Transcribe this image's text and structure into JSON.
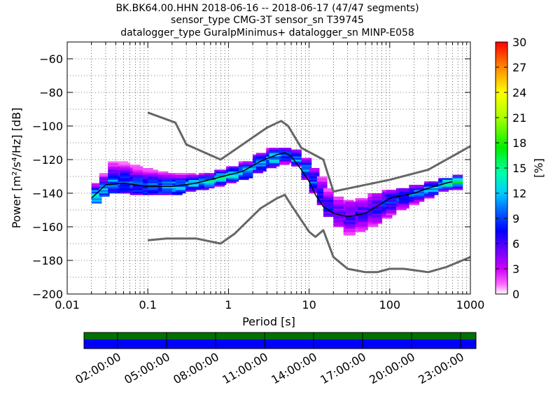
{
  "title_lines": [
    "BK.BK64.00.HHN   2018-06-16 -- 2018-06-17  (47/47 segments)",
    "sensor_type CMG-3T sensor_sn T39745",
    "datalogger_type GuralpMinimus+ datalogger_sn MINP-E058"
  ],
  "colorbar": {
    "label": "[%]",
    "min": 0,
    "max": 30,
    "ticks": [
      "0",
      "3",
      "6",
      "9",
      "12",
      "15",
      "18",
      "21",
      "24",
      "27",
      "30"
    ]
  },
  "coverage": {
    "time_labels": [
      "02:00:00",
      "05:00:00",
      "08:00:00",
      "11:00:00",
      "14:00:00",
      "17:00:00",
      "20:00:00",
      "23:00:00"
    ],
    "colors": {
      "upper": "#007000",
      "lower": "#0000ff"
    }
  },
  "chart_data": {
    "type": "heatmap",
    "xlabel": "Period [s]",
    "ylabel": "Power [m²/s⁴/Hz] [dB]",
    "x_scale": "log",
    "xlim": [
      0.01,
      1000
    ],
    "ylim": [
      -200,
      -50
    ],
    "xticks": [
      "0.01",
      "0.1",
      "1",
      "10",
      "100",
      "1000"
    ],
    "yticks": [
      "−200",
      "−180",
      "−160",
      "−140",
      "−120",
      "−100",
      "−80",
      "−60"
    ],
    "grid": true,
    "mode_curve": [
      [
        0.02,
        -143
      ],
      [
        0.03,
        -135
      ],
      [
        0.05,
        -134
      ],
      [
        0.1,
        -136
      ],
      [
        0.2,
        -136
      ],
      [
        0.4,
        -134
      ],
      [
        0.7,
        -131
      ],
      [
        1.5,
        -127
      ],
      [
        2.5,
        -121
      ],
      [
        4,
        -117
      ],
      [
        5,
        -116
      ],
      [
        6,
        -118
      ],
      [
        8,
        -126
      ],
      [
        10,
        -133
      ],
      [
        12,
        -141
      ],
      [
        15,
        -148
      ],
      [
        20,
        -152
      ],
      [
        30,
        -154
      ],
      [
        50,
        -152
      ],
      [
        100,
        -143
      ],
      [
        200,
        -140
      ],
      [
        300,
        -137
      ],
      [
        600,
        -133
      ]
    ],
    "noise_model_high": [
      [
        0.1,
        -92
      ],
      [
        0.22,
        -98
      ],
      [
        0.3,
        -111
      ],
      [
        0.8,
        -120
      ],
      [
        3,
        -101
      ],
      [
        4.5,
        -97
      ],
      [
        5.5,
        -100
      ],
      [
        8,
        -113
      ],
      [
        15,
        -120
      ],
      [
        20,
        -139
      ],
      [
        100,
        -132
      ],
      [
        300,
        -126
      ],
      [
        600,
        -118
      ],
      [
        1000,
        -112
      ]
    ],
    "noise_model_low": [
      [
        0.1,
        -168
      ],
      [
        0.17,
        -167
      ],
      [
        0.4,
        -167
      ],
      [
        0.8,
        -170
      ],
      [
        1.2,
        -164
      ],
      [
        2.5,
        -149
      ],
      [
        4,
        -143
      ],
      [
        5,
        -141
      ],
      [
        6,
        -147
      ],
      [
        10,
        -163
      ],
      [
        12,
        -166
      ],
      [
        15,
        -162
      ],
      [
        20,
        -178
      ],
      [
        30,
        -185
      ],
      [
        50,
        -187
      ],
      [
        70,
        -187
      ],
      [
        100,
        -185
      ],
      [
        150,
        -185
      ],
      [
        300,
        -187
      ],
      [
        500,
        -184
      ],
      [
        1000,
        -178
      ]
    ],
    "pdf_band": [
      {
        "period": 0.02,
        "y_min": -146,
        "y_max": -134,
        "peak": -142,
        "peak_pct": 14
      },
      {
        "period": 0.025,
        "y_min": -142,
        "y_max": -128,
        "peak": -138,
        "peak_pct": 12
      },
      {
        "period": 0.032,
        "y_min": -140,
        "y_max": -121,
        "peak": -134,
        "peak_pct": 10
      },
      {
        "period": 0.045,
        "y_min": -140,
        "y_max": -122,
        "peak": -134,
        "peak_pct": 9
      },
      {
        "period": 0.065,
        "y_min": -141,
        "y_max": -124,
        "peak": -135,
        "peak_pct": 9
      },
      {
        "period": 0.1,
        "y_min": -141,
        "y_max": -126,
        "peak": -136,
        "peak_pct": 10
      },
      {
        "period": 0.15,
        "y_min": -141,
        "y_max": -128,
        "peak": -136,
        "peak_pct": 10
      },
      {
        "period": 0.22,
        "y_min": -140,
        "y_max": -128,
        "peak": -136,
        "peak_pct": 11
      },
      {
        "period": 0.32,
        "y_min": -138,
        "y_max": -129,
        "peak": -134,
        "peak_pct": 12
      },
      {
        "period": 0.5,
        "y_min": -137,
        "y_max": -128,
        "peak": -133,
        "peak_pct": 13
      },
      {
        "period": 0.7,
        "y_min": -135,
        "y_max": -126,
        "peak": -131,
        "peak_pct": 13
      },
      {
        "period": 1.0,
        "y_min": -133,
        "y_max": -124,
        "peak": -129,
        "peak_pct": 13
      },
      {
        "period": 1.5,
        "y_min": -131,
        "y_max": -121,
        "peak": -127,
        "peak_pct": 12
      },
      {
        "period": 2.2,
        "y_min": -127,
        "y_max": -116,
        "peak": -122,
        "peak_pct": 12
      },
      {
        "period": 3.2,
        "y_min": -124,
        "y_max": -113,
        "peak": -119,
        "peak_pct": 12
      },
      {
        "period": 4.5,
        "y_min": -122,
        "y_max": -113,
        "peak": -117,
        "peak_pct": 11
      },
      {
        "period": 6.0,
        "y_min": -124,
        "y_max": -114,
        "peak": -119,
        "peak_pct": 11
      },
      {
        "period": 8.0,
        "y_min": -132,
        "y_max": -119,
        "peak": -126,
        "peak_pct": 10
      },
      {
        "period": 10.0,
        "y_min": -140,
        "y_max": -125,
        "peak": -133,
        "peak_pct": 9
      },
      {
        "period": 12.5,
        "y_min": -147,
        "y_max": -130,
        "peak": -141,
        "peak_pct": 8
      },
      {
        "period": 15.0,
        "y_min": -154,
        "y_max": -137,
        "peak": -148,
        "peak_pct": 7
      },
      {
        "period": 20.0,
        "y_min": -160,
        "y_max": -142,
        "peak": -152,
        "peak_pct": 6
      },
      {
        "period": 28.0,
        "y_min": -165,
        "y_max": -145,
        "peak": -154,
        "peak_pct": 6
      },
      {
        "period": 40.0,
        "y_min": -162,
        "y_max": -143,
        "peak": -152,
        "peak_pct": 6
      },
      {
        "period": 60.0,
        "y_min": -158,
        "y_max": -140,
        "peak": -149,
        "peak_pct": 7
      },
      {
        "period": 90.0,
        "y_min": -153,
        "y_max": -138,
        "peak": -145,
        "peak_pct": 8
      },
      {
        "period": 130.0,
        "y_min": -149,
        "y_max": -137,
        "peak": -142,
        "peak_pct": 9
      },
      {
        "period": 200.0,
        "y_min": -145,
        "y_max": -135,
        "peak": -140,
        "peak_pct": 10
      },
      {
        "period": 300.0,
        "y_min": -141,
        "y_max": -133,
        "peak": -137,
        "peak_pct": 12
      },
      {
        "period": 450.0,
        "y_min": -138,
        "y_max": -131,
        "peak": -134,
        "peak_pct": 14
      },
      {
        "period": 620.0,
        "y_min": -137,
        "y_max": -129,
        "peak": -133,
        "peak_pct": 15
      }
    ]
  }
}
